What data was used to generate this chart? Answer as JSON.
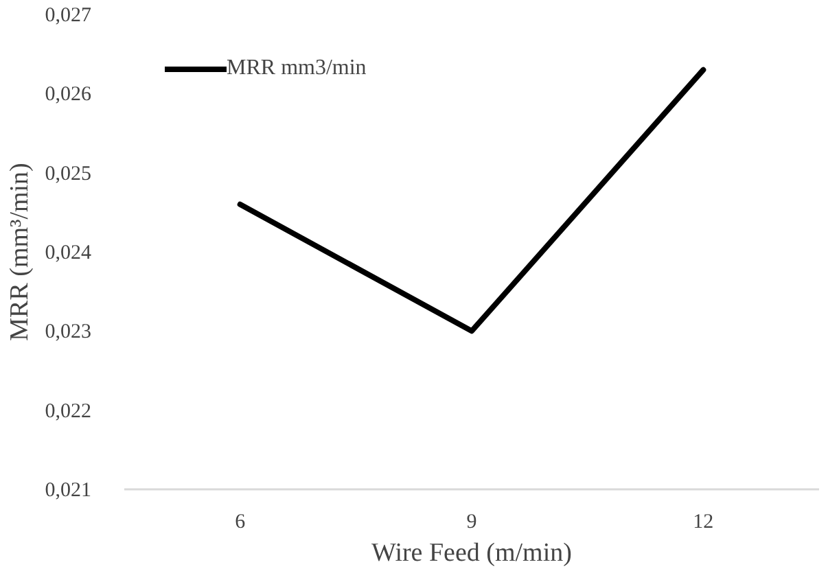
{
  "chart_data": {
    "type": "line",
    "xlabel": "Wire Feed (m/min)",
    "ylabel": "MRR (mm³/min)",
    "categories": [
      "6",
      "9",
      "12"
    ],
    "series": [
      {
        "name": "MRR mm3/min",
        "color": "#000000",
        "values": [
          0.0246,
          0.023,
          0.0263
        ]
      }
    ],
    "ylim": [
      0.021,
      0.027
    ],
    "yticks": [
      {
        "value": 0.021,
        "label": "0,021"
      },
      {
        "value": 0.022,
        "label": "0,022"
      },
      {
        "value": 0.023,
        "label": "0,023"
      },
      {
        "value": 0.024,
        "label": "0,024"
      },
      {
        "value": 0.025,
        "label": "0,025"
      },
      {
        "value": 0.026,
        "label": "0,026"
      },
      {
        "value": 0.027,
        "label": "0,027"
      }
    ],
    "grid": false,
    "legend": "top left",
    "marker": "none",
    "line_style": "solid"
  }
}
